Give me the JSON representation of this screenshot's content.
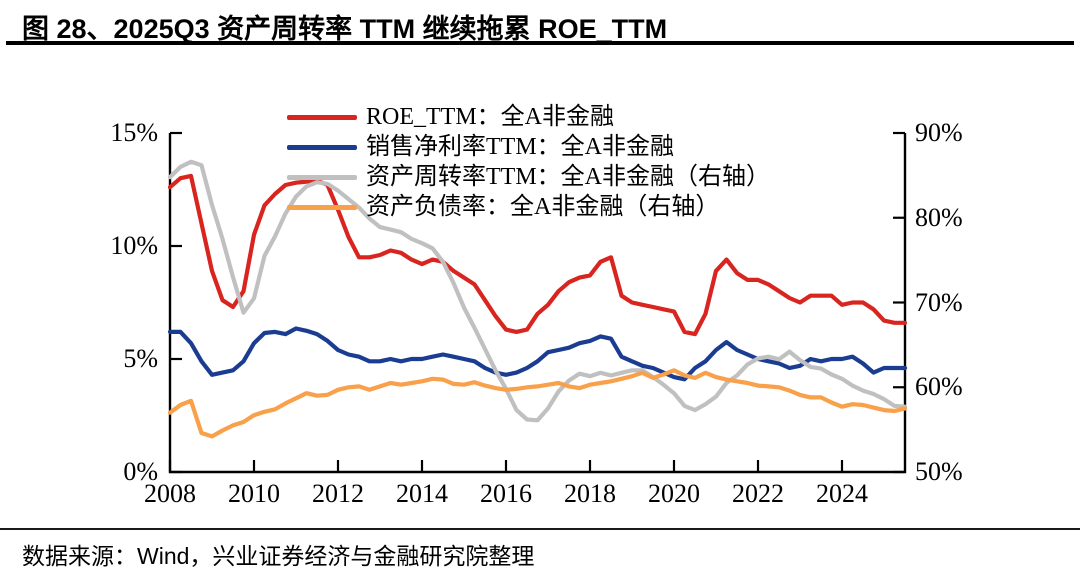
{
  "page": {
    "title": "图 28、2025Q3 资产周转率 TTM 继续拖累 ROE_TTM",
    "source": "数据来源：Wind，兴业证券经济与金融研究院整理"
  },
  "colors": {
    "roe": "#d9251f",
    "net_margin": "#1b3d91",
    "asset_turnover": "#c0c0c0",
    "debt_ratio": "#f9a04a",
    "axis": "#000000",
    "title_rule": "#000000"
  },
  "legend": [
    {
      "label": "ROE_TTM：全A非金融",
      "color": "#d9251f"
    },
    {
      "label": "销售净利率TTM：全A非金融",
      "color": "#1b3d91"
    },
    {
      "label": "资产周转率TTM：全A非金融（右轴）",
      "color": "#c0c0c0"
    },
    {
      "label": "资产负债率：全A非金融（右轴）",
      "color": "#f9a04a"
    }
  ],
  "axes": {
    "left": {
      "labels": [
        "15%",
        "10%",
        "5%",
        "0%"
      ],
      "values": [
        15,
        10,
        5,
        0
      ]
    },
    "right": {
      "labels": [
        "90%",
        "80%",
        "70%",
        "60%",
        "50%"
      ],
      "values": [
        90,
        80,
        70,
        60,
        50
      ]
    },
    "x": {
      "labels": [
        "2008",
        "2010",
        "2012",
        "2014",
        "2016",
        "2018",
        "2020",
        "2022",
        "2024"
      ],
      "values": [
        2008,
        2010,
        2012,
        2014,
        2016,
        2018,
        2020,
        2022,
        2024
      ]
    }
  },
  "chart_data": {
    "type": "line",
    "title": "2025Q3 资产周转率 TTM 继续拖累 ROE_TTM",
    "xlabel": "",
    "ylabel_left": "",
    "ylabel_right": "",
    "grid": false,
    "legend_position": "top-center",
    "left_ylim": [
      0,
      15
    ],
    "right_ylim": [
      50,
      90
    ],
    "xlim": [
      2008,
      2025.5
    ],
    "x_unit": "year (quarterly points)",
    "x": [
      2008.0,
      2008.25,
      2008.5,
      2008.75,
      2009.0,
      2009.25,
      2009.5,
      2009.75,
      2010.0,
      2010.25,
      2010.5,
      2010.75,
      2011.0,
      2011.25,
      2011.5,
      2011.75,
      2012.0,
      2012.25,
      2012.5,
      2012.75,
      2013.0,
      2013.25,
      2013.5,
      2013.75,
      2014.0,
      2014.25,
      2014.5,
      2014.75,
      2015.0,
      2015.25,
      2015.5,
      2015.75,
      2016.0,
      2016.25,
      2016.5,
      2016.75,
      2017.0,
      2017.25,
      2017.5,
      2017.75,
      2018.0,
      2018.25,
      2018.5,
      2018.75,
      2019.0,
      2019.25,
      2019.5,
      2019.75,
      2020.0,
      2020.25,
      2020.5,
      2020.75,
      2021.0,
      2021.25,
      2021.5,
      2021.75,
      2022.0,
      2022.25,
      2022.5,
      2022.75,
      2023.0,
      2023.25,
      2023.5,
      2023.75,
      2024.0,
      2024.25,
      2024.5,
      2024.75,
      2025.0,
      2025.25,
      2025.5
    ],
    "series": [
      {
        "id": "roe-ttm-line",
        "name": "ROE_TTM：全A非金融",
        "axis": "left",
        "unit": "%",
        "color": "#d9251f",
        "values": [
          12.6,
          13.0,
          13.1,
          11.0,
          8.9,
          7.6,
          7.3,
          8.0,
          10.5,
          11.8,
          12.3,
          12.7,
          12.8,
          12.85,
          12.9,
          12.7,
          11.6,
          10.4,
          9.5,
          9.5,
          9.6,
          9.8,
          9.7,
          9.4,
          9.2,
          9.4,
          9.3,
          8.9,
          8.6,
          8.3,
          7.6,
          6.9,
          6.3,
          6.2,
          6.3,
          7.0,
          7.4,
          8.0,
          8.4,
          8.6,
          8.7,
          9.3,
          9.5,
          7.8,
          7.5,
          7.4,
          7.3,
          7.2,
          7.1,
          6.2,
          6.1,
          7.0,
          8.9,
          9.4,
          8.8,
          8.5,
          8.5,
          8.3,
          8.0,
          7.7,
          7.5,
          7.8,
          7.8,
          7.8,
          7.4,
          7.5,
          7.5,
          7.2,
          6.7,
          6.6,
          6.6
        ]
      },
      {
        "id": "net-margin-line",
        "name": "销售净利率TTM：全A非金融",
        "axis": "left",
        "unit": "%",
        "color": "#1b3d91",
        "values": [
          6.2,
          6.2,
          5.7,
          4.9,
          4.3,
          4.4,
          4.5,
          4.9,
          5.7,
          6.15,
          6.2,
          6.1,
          6.35,
          6.25,
          6.1,
          5.8,
          5.4,
          5.2,
          5.1,
          4.9,
          4.9,
          5.0,
          4.9,
          5.0,
          5.0,
          5.1,
          5.2,
          5.1,
          5.0,
          4.9,
          4.6,
          4.4,
          4.3,
          4.4,
          4.6,
          4.9,
          5.3,
          5.4,
          5.5,
          5.7,
          5.8,
          6.0,
          5.9,
          5.1,
          4.9,
          4.7,
          4.6,
          4.4,
          4.2,
          4.1,
          4.6,
          4.9,
          5.4,
          5.75,
          5.4,
          5.2,
          5.0,
          4.9,
          4.8,
          4.6,
          4.7,
          5.0,
          4.9,
          5.0,
          5.0,
          5.1,
          4.8,
          4.4,
          4.6,
          4.6,
          4.6
        ]
      },
      {
        "id": "asset-turnover-line",
        "name": "资产周转率TTM：全A非金融（右轴）",
        "axis": "right",
        "unit": "%",
        "color": "#c0c0c0",
        "values": [
          84.8,
          86.0,
          86.6,
          86.2,
          81.5,
          77.5,
          73.0,
          68.8,
          70.5,
          75.5,
          77.8,
          80.5,
          82.5,
          83.7,
          84.2,
          84.0,
          83.2,
          82.2,
          81.2,
          79.9,
          78.9,
          78.6,
          78.3,
          77.5,
          77.0,
          76.4,
          74.8,
          72.3,
          69.4,
          67.0,
          64.5,
          62.0,
          59.8,
          57.3,
          56.2,
          56.1,
          57.5,
          59.5,
          60.8,
          61.6,
          61.3,
          61.7,
          61.4,
          61.7,
          62.0,
          62.0,
          61.2,
          60.3,
          59.3,
          57.8,
          57.3,
          58.0,
          58.9,
          60.5,
          61.4,
          62.7,
          63.4,
          63.6,
          63.3,
          64.2,
          63.2,
          62.4,
          62.2,
          61.5,
          61.0,
          60.2,
          59.6,
          59.2,
          58.6,
          57.8,
          57.7
        ]
      },
      {
        "id": "debt-ratio-line",
        "name": "资产负债率：全A非金融（右轴）",
        "axis": "right",
        "unit": "%",
        "color": "#f9a04a",
        "values": [
          57.0,
          57.9,
          58.4,
          54.6,
          54.2,
          54.9,
          55.5,
          55.9,
          56.7,
          57.1,
          57.4,
          58.1,
          58.7,
          59.3,
          59.0,
          59.1,
          59.7,
          60.0,
          60.1,
          59.7,
          60.1,
          60.5,
          60.3,
          60.5,
          60.7,
          61.0,
          60.9,
          60.4,
          60.3,
          60.6,
          60.2,
          59.9,
          59.7,
          59.8,
          60.0,
          60.1,
          60.3,
          60.5,
          60.1,
          59.9,
          60.3,
          60.5,
          60.7,
          61.0,
          61.3,
          61.7,
          61.1,
          61.5,
          62.0,
          61.4,
          61.1,
          61.7,
          61.2,
          60.9,
          60.7,
          60.5,
          60.2,
          60.1,
          60.0,
          59.6,
          59.1,
          58.8,
          58.8,
          58.2,
          57.7,
          58.0,
          57.9,
          57.6,
          57.3,
          57.2,
          57.5
        ]
      }
    ]
  }
}
